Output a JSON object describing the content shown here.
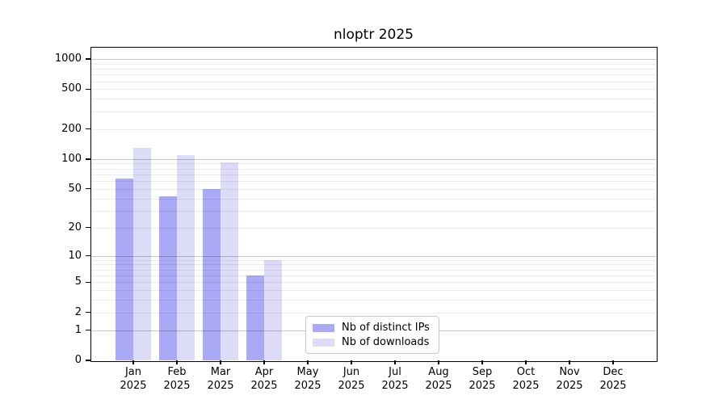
{
  "chart_data": {
    "type": "bar",
    "title": "nloptr 2025",
    "categories": [
      "Jan",
      "Feb",
      "Mar",
      "Apr",
      "May",
      "Jun",
      "Jul",
      "Aug",
      "Sep",
      "Oct",
      "Nov",
      "Dec"
    ],
    "x_tick_second_line": "2025",
    "series": [
      {
        "name": "Nb of distinct IPs",
        "color": "#a9a9f5",
        "values": [
          63,
          42,
          50,
          6,
          null,
          null,
          null,
          null,
          null,
          null,
          null,
          null
        ]
      },
      {
        "name": "Nb of downloads",
        "color": "#dcdcf8",
        "values": [
          129,
          110,
          93,
          9,
          null,
          null,
          null,
          null,
          null,
          null,
          null,
          null
        ]
      }
    ],
    "y_scale": "log10(value+1)",
    "y_ticks": [
      0,
      1,
      2,
      5,
      10,
      20,
      50,
      100,
      200,
      500,
      1000
    ],
    "y_major_grid": [
      1,
      10,
      100,
      1000
    ],
    "y_minor_grid": [
      2,
      3,
      4,
      5,
      6,
      7,
      8,
      9,
      20,
      30,
      40,
      50,
      60,
      70,
      80,
      90,
      200,
      300,
      400,
      500,
      600,
      700,
      800,
      900
    ],
    "ylim_top": 1300,
    "legend": {
      "position": "lower-center-inside"
    },
    "grid": true,
    "colors": {
      "bar_distinct_ips": "#a9a9f5",
      "bar_downloads": "#dcdcf8",
      "major_grid": "#c6c6c6",
      "minor_grid": "#ececec",
      "frame": "#000000"
    }
  }
}
